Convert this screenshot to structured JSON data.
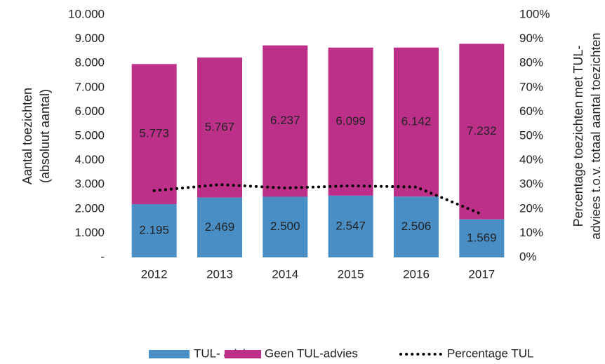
{
  "chart_data": {
    "type": "bar",
    "stacked": true,
    "categories": [
      "2012",
      "2013",
      "2014",
      "2015",
      "2016",
      "2017"
    ],
    "ylabel": [
      "Aantal toezichten",
      "(absoluut aantal)"
    ],
    "y2label": [
      "Percentage toezichten met TUL-",
      "adviees t.o.v. totaal aantal toezichten"
    ],
    "series": [
      {
        "name": "TUL- advies",
        "color": "#4a8ec6",
        "type": "bar",
        "values": [
          2195,
          2469,
          2500,
          2547,
          2506,
          1569
        ],
        "value_labels": [
          "2.195",
          "2.469",
          "2.500",
          "2.547",
          "2.506",
          "1.569"
        ]
      },
      {
        "name": "Geen TUL-advies",
        "color": "#bc3089",
        "type": "bar",
        "values": [
          5773,
          5767,
          6237,
          6099,
          6142,
          7232
        ],
        "value_labels": [
          "5.773",
          "5.767",
          "6.237",
          "6.099",
          "6.142",
          "7.232"
        ]
      },
      {
        "name": "Percentage TUL",
        "color": "#000000",
        "type": "line",
        "axis": "y2",
        "values": [
          27.5,
          30.0,
          28.6,
          29.5,
          29.0,
          17.8
        ]
      }
    ],
    "ylim": [
      0,
      10000
    ],
    "yticks": [
      {
        "value": 0,
        "label": "-"
      },
      {
        "value": 1000,
        "label": "1.000"
      },
      {
        "value": 2000,
        "label": "2.000"
      },
      {
        "value": 3000,
        "label": "3.000"
      },
      {
        "value": 4000,
        "label": "4.000"
      },
      {
        "value": 5000,
        "label": "5.000"
      },
      {
        "value": 6000,
        "label": "6.000"
      },
      {
        "value": 7000,
        "label": "7.000"
      },
      {
        "value": 8000,
        "label": "8.000"
      },
      {
        "value": 9000,
        "label": "9.000"
      },
      {
        "value": 10000,
        "label": "10.000"
      }
    ],
    "y2lim": [
      0,
      100
    ],
    "y2ticks": [
      {
        "value": 0,
        "label": "0%"
      },
      {
        "value": 10,
        "label": "10%"
      },
      {
        "value": 20,
        "label": "20%"
      },
      {
        "value": 30,
        "label": "30%"
      },
      {
        "value": 40,
        "label": "40%"
      },
      {
        "value": 50,
        "label": "50%"
      },
      {
        "value": 60,
        "label": "60%"
      },
      {
        "value": 70,
        "label": "70%"
      },
      {
        "value": 80,
        "label": "80%"
      },
      {
        "value": 90,
        "label": "90%"
      },
      {
        "value": 100,
        "label": "100%"
      }
    ],
    "grid": false,
    "legend": "bottom"
  }
}
